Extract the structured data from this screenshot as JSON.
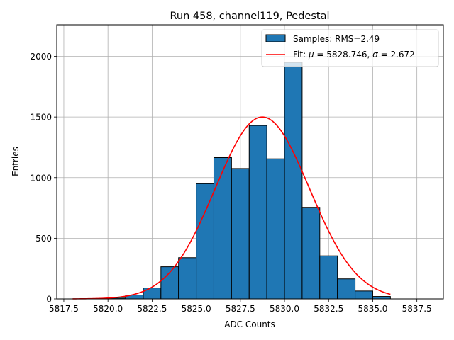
{
  "chart_data": {
    "type": "histogram",
    "title": "Run 458, channel119, Pedestal",
    "xlabel": "ADC Counts",
    "ylabel": "Entries",
    "xlim": [
      5817.1,
      5839.0
    ],
    "ylim": [
      0,
      2260
    ],
    "xticks": [
      5817.5,
      5820.0,
      5822.5,
      5825.0,
      5827.5,
      5830.0,
      5832.5,
      5835.0,
      5837.5
    ],
    "xtick_labels": [
      "5817.5",
      "5820.0",
      "5822.5",
      "5825.0",
      "5827.5",
      "5830.0",
      "5832.5",
      "5835.0",
      "5837.5"
    ],
    "yticks": [
      0,
      500,
      1000,
      1500,
      2000
    ],
    "ytick_labels": [
      "0",
      "500",
      "1000",
      "1500",
      "2000"
    ],
    "grid": true,
    "legend_position": "upper right",
    "bins": [
      {
        "x0": 5820,
        "x1": 5821,
        "value": 7
      },
      {
        "x0": 5821,
        "x1": 5822,
        "value": 32
      },
      {
        "x0": 5822,
        "x1": 5823,
        "value": 90
      },
      {
        "x0": 5823,
        "x1": 5824,
        "value": 265
      },
      {
        "x0": 5824,
        "x1": 5825,
        "value": 340
      },
      {
        "x0": 5825,
        "x1": 5826,
        "value": 950
      },
      {
        "x0": 5826,
        "x1": 5827,
        "value": 1165
      },
      {
        "x0": 5827,
        "x1": 5828,
        "value": 1075
      },
      {
        "x0": 5828,
        "x1": 5829,
        "value": 1430
      },
      {
        "x0": 5829,
        "x1": 5830,
        "value": 1155
      },
      {
        "x0": 5830,
        "x1": 5831,
        "value": 1950
      },
      {
        "x0": 5831,
        "x1": 5832,
        "value": 755
      },
      {
        "x0": 5832,
        "x1": 5833,
        "value": 355
      },
      {
        "x0": 5833,
        "x1": 5834,
        "value": 165
      },
      {
        "x0": 5834,
        "x1": 5835,
        "value": 65
      },
      {
        "x0": 5835,
        "x1": 5836,
        "value": 20
      }
    ],
    "fit": {
      "mu": 5828.746,
      "sigma": 2.672,
      "amplitude": 1500,
      "x_range": [
        5818.0,
        5836.0
      ]
    },
    "series": [
      {
        "name": "Samples: RMS=2.49",
        "kind": "bars",
        "color": "#1f77b4"
      },
      {
        "name": "Fit",
        "kind": "line",
        "color": "#ff0000"
      }
    ],
    "legend": {
      "samples_label": "Samples: RMS=2.49",
      "fit_prefix": "Fit: ",
      "mu_symbol": "μ",
      "mu_text": " = 5828.746, ",
      "sigma_symbol": "σ",
      "sigma_text": " = 2.672"
    }
  }
}
